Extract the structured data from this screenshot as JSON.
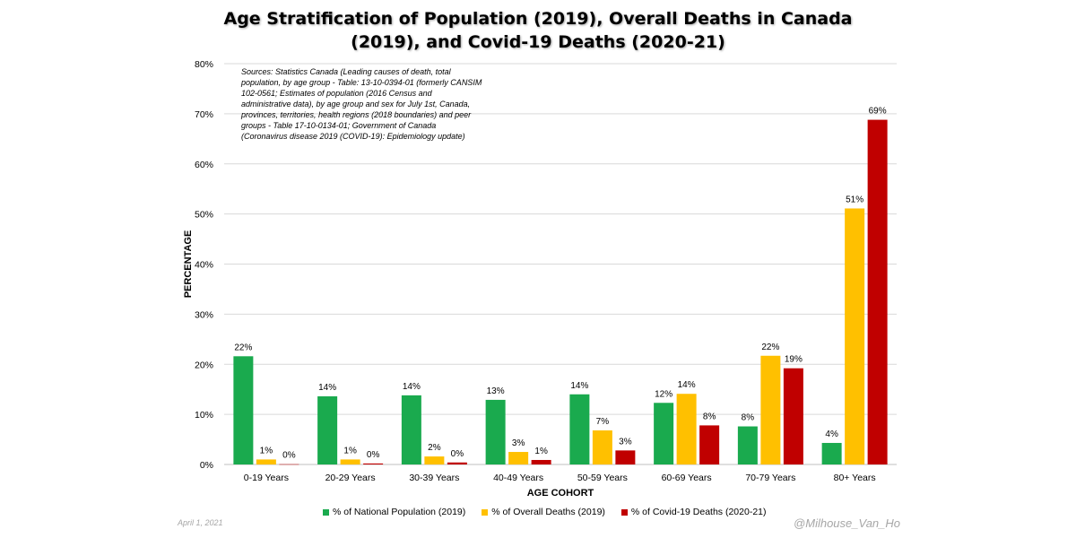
{
  "title_line1": "Age Stratification of Population (2019), Overall Deaths in Canada",
  "title_line2": "(2019), and Covid-19 Deaths (2020-21)",
  "sources_note": "Sources: Statistics Canada (Leading causes of death, total population, by age group - Table: 13-10-0394-01 (formerly CANSIM 102-0561; Estimates of population (2016 Census and administrative data), by age group and sex for July 1st, Canada, provinces, territories, health regions (2018 boundaries) and peer groups - Table 17-10-0134-01; Government of Canada (Coronavirus disease 2019 (COVID-19): Epidemiology update)",
  "date_note": "April 1, 2021",
  "handle": "@Milhouse_Van_Ho",
  "colors": {
    "population": "#1aaa4e",
    "overall_deaths": "#ffc000",
    "covid_deaths": "#c00000",
    "grid": "#d9d9d9"
  },
  "chart_data": {
    "type": "bar",
    "title": "Age Stratification of Population (2019), Overall Deaths in Canada (2019), and Covid-19 Deaths (2020-21)",
    "xlabel": "AGE COHORT",
    "ylabel": "PERCENTAGE",
    "ylim": [
      0,
      80
    ],
    "yticks": [
      "0%",
      "10%",
      "20%",
      "30%",
      "40%",
      "50%",
      "60%",
      "70%",
      "80%"
    ],
    "grid": true,
    "legend_position": "bottom",
    "categories": [
      "0-19 Years",
      "20-29 Years",
      "30-39 Years",
      "40-49 Years",
      "50-59 Years",
      "60-69 Years",
      "70-79 Years",
      "80+ Years"
    ],
    "series": [
      {
        "name": "% of National Population (2019)",
        "values": [
          21.6,
          13.6,
          13.8,
          12.9,
          14.0,
          12.3,
          7.6,
          4.3
        ],
        "labels": [
          "22%",
          "14%",
          "14%",
          "13%",
          "14%",
          "12%",
          "8%",
          "4%"
        ]
      },
      {
        "name": "% of Overall Deaths (2019)",
        "values": [
          1.0,
          1.0,
          1.6,
          2.5,
          6.8,
          14.1,
          21.7,
          51.1
        ],
        "labels": [
          "1%",
          "1%",
          "2%",
          "3%",
          "7%",
          "14%",
          "22%",
          "51%"
        ]
      },
      {
        "name": "% of Covid-19 Deaths (2020-21)",
        "values": [
          0.05,
          0.2,
          0.4,
          0.9,
          2.8,
          7.8,
          19.2,
          68.8
        ],
        "labels": [
          "0%",
          "0%",
          "0%",
          "1%",
          "3%",
          "8%",
          "19%",
          "69%"
        ]
      }
    ]
  }
}
